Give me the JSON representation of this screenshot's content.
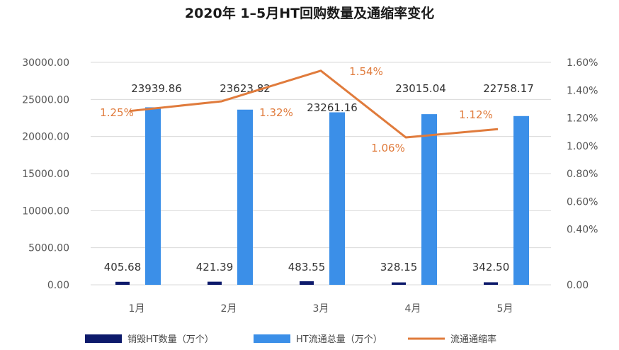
{
  "chart_data": {
    "type": "bar",
    "title": "2020年 1–5月HT回购数量及通缩率变化",
    "categories": [
      "1月",
      "2月",
      "3月",
      "4月",
      "5月"
    ],
    "series": [
      {
        "name": "销毁HT数量（万个）",
        "type": "bar",
        "axis": "left",
        "values": [
          405.68,
          421.39,
          483.55,
          328.15,
          342.5
        ],
        "labels": [
          "405.68",
          "421.39",
          "483.55",
          "328.15",
          "342.50"
        ],
        "color": "#0d1a6b"
      },
      {
        "name": "HT流通总量（万个）",
        "type": "bar",
        "axis": "left",
        "values": [
          23939.86,
          23623.82,
          23261.16,
          23015.04,
          22758.17
        ],
        "labels": [
          "23939.86",
          "23623.82",
          "23261.16",
          "23015.04",
          "22758.17"
        ],
        "color": "#3b8fe8"
      },
      {
        "name": "流通通缩率",
        "type": "line",
        "axis": "right",
        "values": [
          1.25,
          1.32,
          1.54,
          1.06,
          1.12
        ],
        "labels": [
          "1.25%",
          "1.32%",
          "1.54%",
          "1.06%",
          "1.12%"
        ],
        "color": "#e07b3c"
      }
    ],
    "y_left": {
      "ylim": [
        0,
        30000
      ],
      "ticks": [
        "0.00",
        "5000.00",
        "10000.00",
        "15000.00",
        "20000.00",
        "25000.00",
        "30000.00"
      ]
    },
    "y_right": {
      "ylim": [
        0,
        1.6
      ],
      "ticks": [
        {
          "v": 0.0,
          "t": "0.00"
        },
        {
          "v": 0.4,
          "t": "0.40%"
        },
        {
          "v": 0.6,
          "t": "0.60%"
        },
        {
          "v": 0.8,
          "t": "0.80%"
        },
        {
          "v": 1.0,
          "t": "1.00%"
        },
        {
          "v": 1.2,
          "t": "1.20%"
        },
        {
          "v": 1.4,
          "t": "1.40%"
        },
        {
          "v": 1.6,
          "t": "1.60%"
        }
      ]
    },
    "grid": true,
    "legend": "bottom"
  }
}
